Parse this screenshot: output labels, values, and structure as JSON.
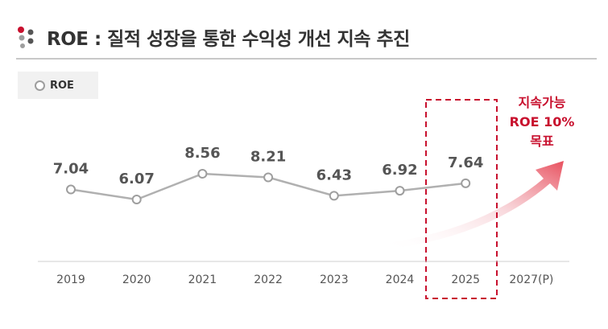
{
  "header": {
    "title": "ROE : 질적 성장을 통한 수익성 개선 지속 추진"
  },
  "legend": {
    "label": "ROE"
  },
  "target_label": {
    "line1": "지속가능",
    "line2": "ROE 10%",
    "line3": "목표"
  },
  "colors": {
    "line": "#b0b0b0",
    "marker": "#9e9e9e",
    "accent": "#c8102e",
    "legend_bg": "#f1f1f1"
  },
  "chart_data": {
    "type": "line",
    "categories": [
      "2019",
      "2020",
      "2021",
      "2022",
      "2023",
      "2024",
      "2025",
      "2027(P)"
    ],
    "series": [
      {
        "name": "ROE",
        "values": [
          7.04,
          6.07,
          8.56,
          8.21,
          6.43,
          6.92,
          7.64,
          null
        ]
      }
    ],
    "data_labels": [
      "7.04",
      "6.07",
      "8.56",
      "8.21",
      "6.43",
      "6.92",
      "7.64"
    ],
    "highlight_category": "2025",
    "projection_category": "2027(P)",
    "projection_target": "10%",
    "title": "",
    "xlabel": "",
    "ylabel": ""
  }
}
